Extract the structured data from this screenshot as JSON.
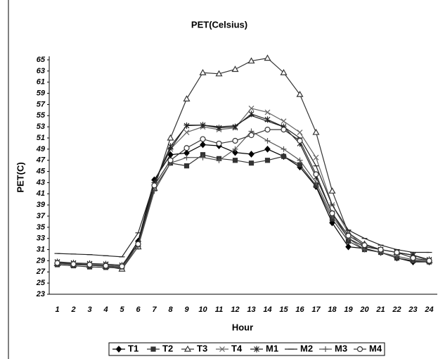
{
  "chart_data": {
    "type": "line",
    "title": "PET(Celsius)",
    "x_label": "Hour",
    "y_label": "PET(C)",
    "categories": [
      "1",
      "2",
      "3",
      "4",
      "5",
      "6",
      "7",
      "8",
      "9",
      "10",
      "11",
      "12",
      "13",
      "14",
      "15",
      "16",
      "17",
      "18",
      "19",
      "20",
      "21",
      "22",
      "23",
      "24"
    ],
    "ylim": [
      23,
      65
    ],
    "yticks": [
      23,
      25,
      27,
      29,
      31,
      33,
      35,
      37,
      39,
      41,
      43,
      45,
      47,
      49,
      51,
      53,
      55,
      57,
      59,
      61,
      63,
      65
    ],
    "grid": false,
    "legend": "bottom",
    "series": [
      {
        "name": "T1",
        "color": "#000000",
        "marker": "diamond",
        "values": [
          28.5,
          28.4,
          28.3,
          28.2,
          28,
          32.5,
          43.5,
          48,
          48.3,
          49.8,
          49.6,
          48.4,
          48.1,
          49,
          47.7,
          45.8,
          42.3,
          35.8,
          31.5,
          31.2,
          30.5,
          29.5,
          28.8,
          28.8
        ]
      },
      {
        "name": "T2",
        "color": "#333333",
        "marker": "square",
        "values": [
          28.3,
          28.1,
          27.9,
          27.8,
          27.7,
          32,
          42,
          46.5,
          46,
          48,
          47.3,
          47,
          46.5,
          47,
          47.7,
          46.2,
          42.5,
          36.5,
          32.5,
          31,
          30.5,
          29.5,
          29,
          28.8
        ]
      },
      {
        "name": "T3",
        "color": "#333333",
        "marker": "triangle",
        "values": [
          28.5,
          28.3,
          28.2,
          28,
          27.5,
          31.5,
          42,
          51,
          58,
          62.7,
          62.5,
          63.3,
          64.8,
          65.3,
          62.7,
          58.8,
          52,
          41.5,
          34,
          32,
          31,
          30.5,
          30,
          29
        ]
      },
      {
        "name": "T4",
        "color": "#666666",
        "marker": "x",
        "values": [
          28.7,
          28.5,
          28.3,
          28.2,
          28,
          32,
          43,
          49,
          52,
          53,
          52.5,
          52.8,
          56.3,
          55.6,
          54,
          52,
          47.5,
          39,
          34,
          31.5,
          31,
          30.5,
          30,
          29
        ]
      },
      {
        "name": "M1",
        "color": "#222222",
        "marker": "asterisk",
        "values": [
          28.8,
          28.6,
          28.5,
          28.4,
          28.2,
          32,
          43,
          49.5,
          53.2,
          53.3,
          52.8,
          53,
          55.3,
          54.3,
          53,
          50,
          44,
          37.5,
          33,
          31.5,
          31,
          30.5,
          30,
          29.2
        ]
      },
      {
        "name": "M2",
        "color": "#222222",
        "marker": "dash",
        "values": [
          30.3,
          30.2,
          30.1,
          29.9,
          29.7,
          34,
          43,
          49,
          53.3,
          53.3,
          53,
          53.2,
          55,
          54,
          53,
          51,
          46,
          39,
          34.5,
          33,
          31.8,
          31,
          30.5,
          30.5
        ]
      },
      {
        "name": "M3",
        "color": "#555555",
        "marker": "plus",
        "values": [
          28.5,
          28.3,
          28.2,
          28,
          27.8,
          31.5,
          41.5,
          46.5,
          47.5,
          47.5,
          47,
          49,
          52.2,
          50.5,
          49,
          47,
          43,
          37,
          33,
          31,
          30.5,
          29.8,
          29.2,
          29
        ]
      },
      {
        "name": "M4",
        "color": "#333333",
        "marker": "circle",
        "values": [
          28.6,
          28.4,
          28.3,
          28.1,
          28,
          32,
          42.5,
          47,
          49.2,
          50.8,
          50,
          50.5,
          51.5,
          52.5,
          52.5,
          50.5,
          44.5,
          37.5,
          33.5,
          31.8,
          31,
          30.5,
          29.5,
          29
        ]
      }
    ]
  }
}
